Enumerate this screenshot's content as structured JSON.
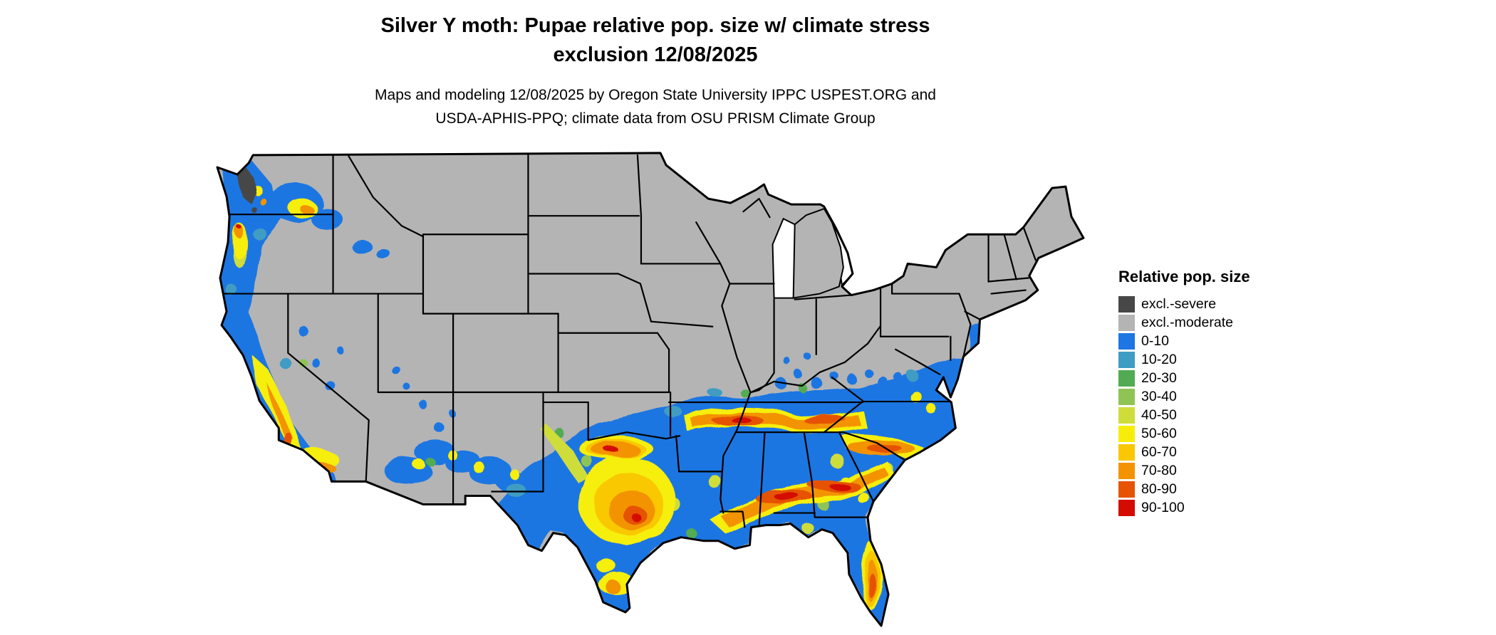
{
  "title": {
    "line1": "Silver Y moth: Pupae relative pop. size w/ climate stress",
    "line2": "exclusion 12/08/2025"
  },
  "subtitle": {
    "line1": "Maps and modeling 12/08/2025 by Oregon State University IPPC USPEST.ORG and",
    "line2": "USDA-APHIS-PPQ; climate data from OSU PRISM Climate Group"
  },
  "legend": {
    "title": "Relative pop. size",
    "items": [
      {
        "label": "excl.-severe",
        "color": "#474747"
      },
      {
        "label": "excl.-moderate",
        "color": "#b4b4b4"
      },
      {
        "label": "0-10",
        "color": "#1d76e2"
      },
      {
        "label": "10-20",
        "color": "#3f9cc3"
      },
      {
        "label": "20-30",
        "color": "#52ab53"
      },
      {
        "label": "30-40",
        "color": "#8fc455"
      },
      {
        "label": "40-50",
        "color": "#cfdd3a"
      },
      {
        "label": "50-60",
        "color": "#f6ee0a"
      },
      {
        "label": "60-70",
        "color": "#f9c802"
      },
      {
        "label": "70-80",
        "color": "#f39303"
      },
      {
        "label": "80-90",
        "color": "#e65303"
      },
      {
        "label": "90-100",
        "color": "#d40b00"
      }
    ]
  },
  "chart_data": {
    "type": "heatmap",
    "map_region": "Contiguous United States",
    "species": "Silver Y moth",
    "life_stage": "Pupae",
    "variable": "Relative pop. size",
    "model_date": "12/08/2025",
    "legend_title": "Relative pop. size",
    "classes": [
      {
        "label": "excl.-severe",
        "color": "#474747"
      },
      {
        "label": "excl.-moderate",
        "color": "#b4b4b4"
      },
      {
        "label": "0-10",
        "color": "#1d76e2"
      },
      {
        "label": "10-20",
        "color": "#3f9cc3"
      },
      {
        "label": "20-30",
        "color": "#52ab53"
      },
      {
        "label": "30-40",
        "color": "#8fc455"
      },
      {
        "label": "40-50",
        "color": "#cfdd3a"
      },
      {
        "label": "50-60",
        "color": "#f6ee0a"
      },
      {
        "label": "60-70",
        "color": "#f9c802"
      },
      {
        "label": "70-80",
        "color": "#f39303"
      },
      {
        "label": "80-90",
        "color": "#e65303"
      },
      {
        "label": "90-100",
        "color": "#d40b00"
      }
    ],
    "pattern_summary": "Most of the northern and interior U.S. is excluded (moderate, gray); a severe-exclusion pocket appears in the Puget Sound area of Washington. Low relative population (blue 0-10) covers the southern states from Texas through the Southeast up to the mid-Atlantic coast and along the Pacific coast. Highest values (yellow to red, 50-100) occur in central Texas, along the Red River, across Arkansas/Tennessee and the central Gulf states into the Carolinas, the central Florida ridge, California's Central Valley and southern California, with scattered moderate values in Arizona, New Mexico and eastern Washington."
  }
}
